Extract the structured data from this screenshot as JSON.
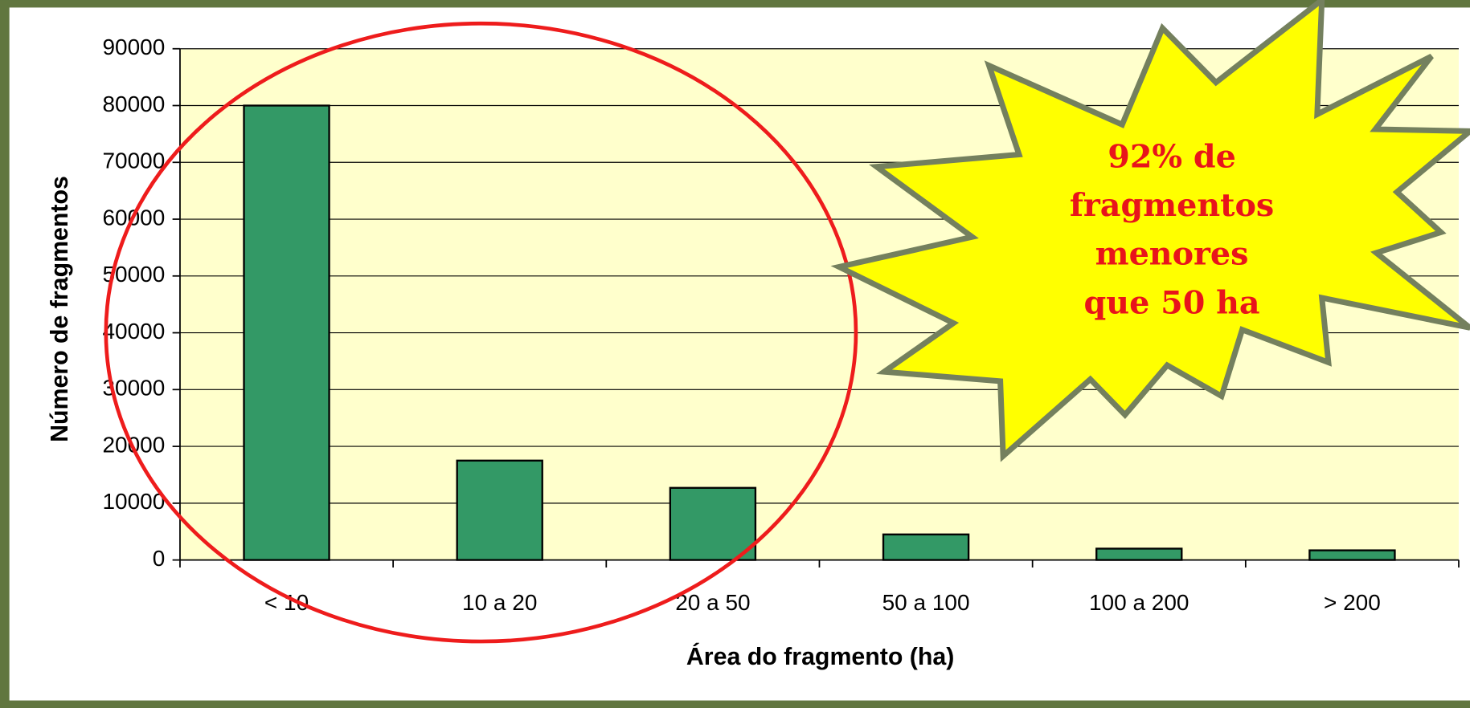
{
  "chart_data": {
    "type": "bar",
    "categories": [
      "< 10",
      "10 a 20",
      "20 a 50",
      "50 a 100",
      "100 a 200",
      "> 200"
    ],
    "values": [
      80000,
      17500,
      12700,
      4500,
      2000,
      1700
    ],
    "color": "#339966",
    "ylim": [
      0,
      90000
    ],
    "yticks": [
      0,
      10000,
      20000,
      30000,
      40000,
      50000,
      60000,
      70000,
      80000,
      90000
    ],
    "grid": true,
    "xlabel": "Área do fragmento (ha)",
    "ylabel": "Número de fragmentos",
    "annotation": [
      "92% de",
      "fragmentos",
      "menores",
      "que 50 ha"
    ]
  }
}
